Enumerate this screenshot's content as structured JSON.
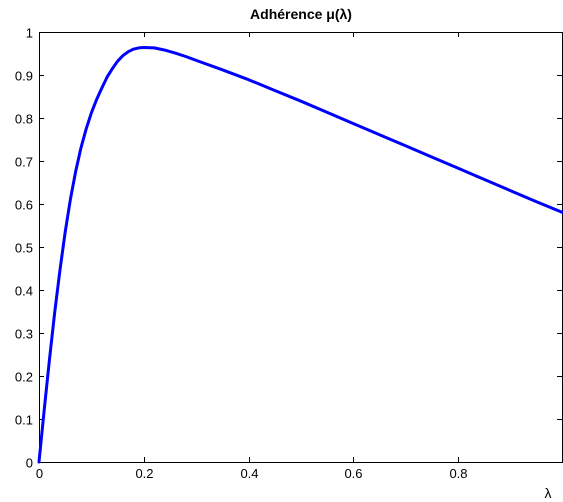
{
  "chart_data": {
    "type": "line",
    "title": "Adhérence μ(λ)",
    "xlabel": "λ",
    "ylabel": "",
    "xlim": [
      0,
      1
    ],
    "ylim": [
      0,
      1
    ],
    "xticks": [
      "0",
      "0.2",
      "0.4",
      "0.6",
      "0.8"
    ],
    "yticks": [
      "0",
      "0.1",
      "0.2",
      "0.3",
      "0.4",
      "0.5",
      "0.6",
      "0.7",
      "0.8",
      "0.9",
      "1"
    ],
    "grid": false,
    "legend": "none",
    "series": [
      {
        "color": "#0000ff",
        "x": [
          0,
          0.01,
          0.02,
          0.03,
          0.04,
          0.05,
          0.06,
          0.07,
          0.08,
          0.09,
          0.1,
          0.11,
          0.12,
          0.13,
          0.14,
          0.15,
          0.16,
          0.17,
          0.18,
          0.19,
          0.2,
          0.22,
          0.24,
          0.26,
          0.28,
          0.3,
          0.35,
          0.4,
          0.45,
          0.5,
          0.55,
          0.6,
          0.65,
          0.7,
          0.75,
          0.8,
          0.85,
          0.9,
          0.95,
          1.0
        ],
        "y": [
          0,
          0.121,
          0.239,
          0.348,
          0.447,
          0.535,
          0.611,
          0.676,
          0.73,
          0.775,
          0.812,
          0.843,
          0.87,
          0.895,
          0.915,
          0.932,
          0.945,
          0.954,
          0.96,
          0.963,
          0.964,
          0.963,
          0.958,
          0.951,
          0.943,
          0.934,
          0.912,
          0.889,
          0.864,
          0.839,
          0.813,
          0.787,
          0.761,
          0.735,
          0.709,
          0.683,
          0.657,
          0.631,
          0.605,
          0.58
        ]
      }
    ]
  }
}
